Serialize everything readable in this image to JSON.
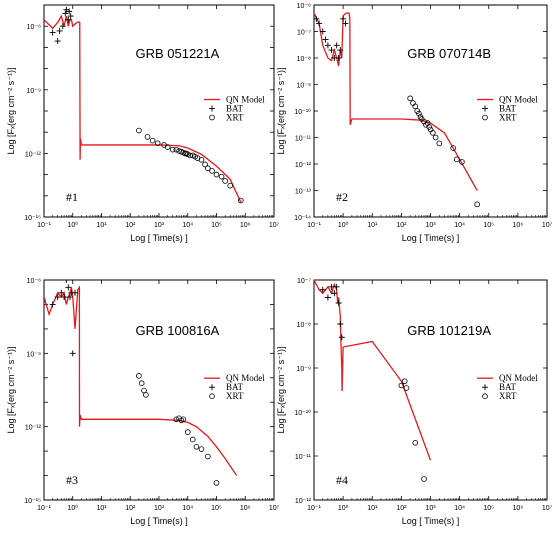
{
  "chart_data": [
    {
      "type": "line",
      "title": "GRB 051221A",
      "panel_label": "#1",
      "xlabel": "Log [ Time(s) ]",
      "ylabel": "Log [Fₓ(erg cm⁻² s⁻¹)]",
      "xscale": "log",
      "yscale": "log",
      "xlim": [
        0.1,
        10000000
      ],
      "ylim": [
        1e-15,
        1e-05
      ],
      "xticks": [
        "10⁻¹",
        "10⁰",
        "10¹",
        "10²",
        "10³",
        "10⁴",
        "10⁵",
        "10⁶",
        "10⁷"
      ],
      "yticks": [
        "10⁻¹⁵",
        "10⁻¹²",
        "10⁻⁹",
        "10⁻⁶"
      ],
      "ytick_values": [
        1e-15,
        1e-12,
        1e-09,
        1e-06
      ],
      "legend": [
        "QN Model",
        "BAT",
        "XRT"
      ],
      "series": [
        {
          "name": "QN Model",
          "style": "line",
          "color": "#e41a1c",
          "x": [
            0.1,
            0.2,
            0.3,
            0.4,
            0.5,
            0.6,
            0.7,
            0.8,
            0.9,
            1.0,
            1.3,
            1.6,
            1.75,
            1.8,
            1.85,
            2.0,
            100,
            1000,
            5000,
            10000,
            30000,
            100000,
            300000,
            700000
          ],
          "y": [
            2e-06,
            8e-07,
            1.5e-06,
            3e-06,
            1e-06,
            3e-06,
            1e-06,
            2e-06,
            2e-06,
            1e-06,
            1.4e-06,
            1.6e-06,
            1.5e-06,
            5e-13,
            5e-12,
            2.5e-12,
            2.5e-12,
            2.5e-12,
            2.3e-12,
            1.8e-12,
            9e-13,
            2.5e-13,
            6e-14,
            5e-15
          ]
        },
        {
          "name": "BAT",
          "style": "plus",
          "x": [
            0.2,
            0.3,
            0.35,
            0.45,
            0.55,
            0.6,
            0.7,
            0.75,
            0.85
          ],
          "y": [
            5e-07,
            2e-07,
            6e-07,
            1e-06,
            4e-06,
            6e-06,
            2e-06,
            5e-06,
            3e-06
          ]
        },
        {
          "name": "XRT",
          "style": "circle",
          "x": [
            200,
            400,
            600,
            900,
            1500,
            2000,
            3000,
            4000,
            5000,
            6000,
            7000,
            8000,
            9000,
            10000,
            12000,
            15000,
            18000,
            22000,
            30000,
            40000,
            50000,
            70000,
            100000,
            150000,
            200000,
            300000,
            700000
          ],
          "y": [
            1.2e-11,
            6e-12,
            4e-12,
            3e-12,
            2.5e-12,
            2e-12,
            1.5e-12,
            1.5e-12,
            1.3e-12,
            1.2e-12,
            1.1e-12,
            1e-12,
            1e-12,
            9e-13,
            8e-13,
            8e-13,
            7e-13,
            6e-13,
            5e-13,
            3e-13,
            2e-13,
            1.5e-13,
            1e-13,
            8e-14,
            5e-14,
            3e-14,
            6e-15
          ]
        }
      ]
    },
    {
      "type": "line",
      "title": "GRB 070714B",
      "panel_label": "#2",
      "xlabel": "Log [ Time(s) ]",
      "ylabel": "Log [Fₓ(erg cm⁻² s⁻¹)]",
      "xscale": "log",
      "yscale": "log",
      "xlim": [
        0.1,
        10000000
      ],
      "ylim": [
        1e-14,
        1e-06
      ],
      "xticks": [
        "10⁻¹",
        "10⁰",
        "10¹",
        "10²",
        "10³",
        "10⁴",
        "10⁵",
        "10⁶",
        "10⁷"
      ],
      "yticks": [
        "10⁻¹⁴",
        "10⁻¹³",
        "10⁻¹²",
        "10⁻¹¹",
        "10⁻¹⁰",
        "10⁻⁹",
        "10⁻⁸",
        "10⁻⁷",
        "10⁻⁶"
      ],
      "ytick_values": [
        1e-14,
        1e-13,
        1e-12,
        1e-11,
        1e-10,
        1e-09,
        1e-08,
        1e-07,
        1e-06
      ],
      "legend": [
        "QN Model",
        "BAT",
        "XRT"
      ],
      "series": [
        {
          "name": "QN Model",
          "style": "line",
          "color": "#e41a1c",
          "x": [
            0.1,
            0.15,
            0.2,
            0.3,
            0.4,
            0.5,
            0.6,
            0.7,
            0.8,
            0.9,
            1.0,
            1.3,
            1.6,
            1.7,
            1.75,
            2.0,
            100,
            500,
            1000,
            3000,
            10000,
            40000
          ],
          "y": [
            5e-07,
            2e-07,
            3e-08,
            1e-08,
            8e-09,
            2e-08,
            1e-08,
            5e-09,
            2e-08,
            1e-08,
            4e-07,
            5e-07,
            5e-07,
            3e-07,
            3e-11,
            5e-11,
            5e-11,
            4.5e-11,
            3.5e-11,
            1.5e-11,
            1.5e-12,
            1e-13
          ]
        },
        {
          "name": "BAT",
          "style": "plus",
          "x": [
            0.12,
            0.15,
            0.2,
            0.25,
            0.3,
            0.4,
            0.5,
            0.6,
            0.7,
            0.8,
            1.0,
            1.2
          ],
          "y": [
            3e-07,
            2e-07,
            1e-07,
            5e-08,
            3e-08,
            2e-08,
            1e-08,
            3e-08,
            1e-08,
            2e-08,
            3e-07,
            2e-07
          ]
        },
        {
          "name": "XRT",
          "style": "circle",
          "x": [
            200,
            250,
            300,
            350,
            400,
            450,
            500,
            600,
            700,
            800,
            900,
            1000,
            1200,
            1500,
            2000,
            6000,
            8000,
            12000,
            40000
          ],
          "y": [
            3e-10,
            2e-10,
            1.5e-10,
            1e-10,
            8e-11,
            6e-11,
            5e-11,
            4e-11,
            3e-11,
            3.5e-11,
            2.5e-11,
            2e-11,
            1.5e-11,
            1e-11,
            6e-12,
            4e-12,
            1.5e-12,
            1.2e-12,
            3e-14
          ]
        }
      ]
    },
    {
      "type": "line",
      "title": "GRB 100816A",
      "panel_label": "#3",
      "xlabel": "Log [ Time(s) ]",
      "ylabel": "Log [Fₓ(erg cm⁻² s⁻¹)]",
      "xscale": "log",
      "yscale": "log",
      "xlim": [
        0.1,
        10000000
      ],
      "ylim": [
        1e-15,
        1e-06
      ],
      "xticks": [
        "10⁻¹",
        "10⁰",
        "10¹",
        "10²",
        "10³",
        "10⁴",
        "10⁵",
        "10⁶",
        "10⁷"
      ],
      "yticks": [
        "10⁻¹⁵",
        "10⁻¹²",
        "10⁻⁹",
        "10⁻⁶"
      ],
      "ytick_values": [
        1e-15,
        1e-12,
        1e-09,
        1e-06
      ],
      "legend": [
        "QN Model",
        "BAT",
        "XRT"
      ],
      "series": [
        {
          "name": "QN Model",
          "style": "line",
          "color": "#e41a1c",
          "x": [
            0.1,
            0.15,
            0.2,
            0.3,
            0.4,
            0.5,
            0.6,
            0.7,
            0.8,
            0.9,
            1.0,
            1.2,
            1.5,
            1.7,
            1.72,
            1.8,
            2.0,
            100,
            1000,
            5000,
            10000,
            20000,
            50000,
            100000,
            200000,
            500000
          ],
          "y": [
            2e-07,
            4e-08,
            1e-07,
            3e-07,
            2e-07,
            3e-07,
            1e-07,
            2e-07,
            3e-07,
            5e-07,
            2e-07,
            1e-08,
            4e-07,
            5e-07,
            1e-12,
            3e-12,
            2e-12,
            2e-12,
            2e-12,
            1.8e-12,
            1.5e-12,
            1e-12,
            4e-13,
            1.5e-13,
            5e-14,
            1e-14
          ]
        },
        {
          "name": "BAT",
          "style": "plus",
          "x": [
            0.2,
            0.3,
            0.4,
            0.5,
            0.6,
            0.7,
            0.8,
            0.9,
            1.0,
            1.2
          ],
          "y": [
            1e-07,
            2e-07,
            3e-07,
            2e-07,
            1e-06,
            5e-07,
            2e-07,
            3e-07,
            1e-09,
            3e-07
          ]
        },
        {
          "name": "XRT",
          "style": "circle",
          "x": [
            200,
            250,
            300,
            350,
            4000,
            5000,
            6000,
            7000,
            10000,
            15000,
            20000,
            30000,
            50000,
            100000
          ],
          "y": [
            1.2e-10,
            6e-11,
            3e-11,
            2e-11,
            2e-12,
            2.2e-12,
            1.8e-12,
            2e-12,
            6e-13,
            3e-13,
            1.5e-13,
            1.2e-13,
            6e-14,
            5e-15
          ]
        }
      ]
    },
    {
      "type": "line",
      "title": "GRB 101219A",
      "panel_label": "#4",
      "xlabel": "Log [ Time(s) ]",
      "ylabel": "Log [Fₓ(erg cm⁻² s⁻¹)]",
      "xscale": "log",
      "yscale": "log",
      "xlim": [
        0.1,
        10000000
      ],
      "ylim": [
        1e-12,
        1e-07
      ],
      "xticks": [
        "10⁻¹",
        "10⁰",
        "10¹",
        "10²",
        "10³",
        "10⁴",
        "10⁵",
        "10⁶",
        "10⁷"
      ],
      "yticks": [
        "10⁻¹²",
        "10⁻¹¹",
        "10⁻¹⁰",
        "10⁻⁹",
        "10⁻⁸",
        "10⁻⁷"
      ],
      "ytick_values": [
        1e-12,
        1e-11,
        1e-10,
        1e-09,
        1e-08,
        1e-07
      ],
      "legend": [
        "QN Model",
        "BAT",
        "XRT"
      ],
      "series": [
        {
          "name": "QN Model",
          "style": "line",
          "color": "#e41a1c",
          "x": [
            0.1,
            0.15,
            0.2,
            0.3,
            0.4,
            0.5,
            0.6,
            0.65,
            0.7,
            0.8,
            0.85,
            0.9,
            0.92,
            1.0,
            10,
            100,
            1000
          ],
          "y": [
            1e-07,
            6e-08,
            5e-08,
            7e-08,
            5e-08,
            8e-08,
            6e-08,
            3e-08,
            4e-08,
            1.5e-08,
            3e-09,
            1e-09,
            3e-10,
            3e-09,
            4e-09,
            5e-10,
            8e-12
          ]
        },
        {
          "name": "BAT",
          "style": "plus",
          "x": [
            0.2,
            0.3,
            0.4,
            0.5,
            0.6,
            0.7,
            0.8,
            0.9
          ],
          "y": [
            6e-08,
            4e-08,
            7e-08,
            5e-08,
            7e-08,
            3e-08,
            1e-08,
            5e-09
          ]
        },
        {
          "name": "XRT",
          "style": "circle",
          "x": [
            100,
            130,
            150,
            300,
            600,
            1000
          ],
          "y": [
            4e-10,
            5e-10,
            3.5e-10,
            2e-11,
            3e-12,
            6e-13
          ]
        }
      ]
    }
  ]
}
